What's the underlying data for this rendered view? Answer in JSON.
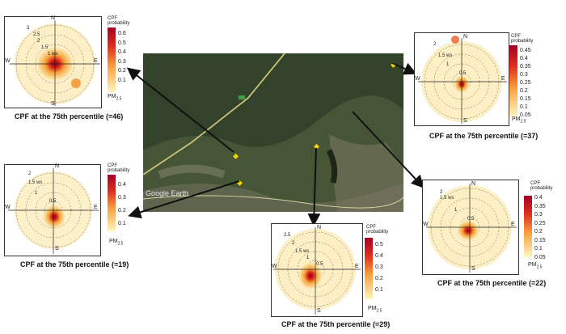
{
  "map": {
    "label": "Google Earth"
  },
  "colorbar": {
    "title_line1": "CPF",
    "title_line2": "probability",
    "pm_label": "PM",
    "pm_sub": "2.5"
  },
  "directions": {
    "n": "N",
    "s": "S",
    "e": "E",
    "w": "W"
  },
  "colors": {
    "map_dark": "#2f3d28",
    "road": "#c9c07a",
    "plume_core": "#b3001b",
    "plume_mid": "#f4a020",
    "plume_low": "#fbe7a8"
  },
  "plots": [
    {
      "id": "tl",
      "caption": "CPF at the 75th percentile (=46)",
      "ticks": [
        "0.6",
        "0.5",
        "0.4",
        "0.3",
        "0.2",
        "0.1"
      ],
      "rings": [
        "3",
        "2.5",
        "2",
        "1.5",
        "1 ws"
      ]
    },
    {
      "id": "tr",
      "caption": "CPF at the 75th percentile (=37)",
      "ticks": [
        "0.45",
        "0.4",
        "0.35",
        "0.3",
        "0.25",
        "0.2",
        "0.15",
        "0.1",
        "0.05"
      ],
      "rings": [
        "2",
        "1.5 ws",
        "1",
        "0.5"
      ]
    },
    {
      "id": "ml",
      "caption": "CPF at the 75th percentile (=19)",
      "ticks": [
        "0.4",
        "0.3",
        "0.2",
        "0.1"
      ],
      "rings": [
        "2",
        "1.5 ws",
        "1",
        "0.5"
      ]
    },
    {
      "id": "bc",
      "caption": "CPF at the 75th percentile (=29)",
      "ticks": [
        "0.5",
        "0.4",
        "0.3",
        "0.2",
        "0.1"
      ],
      "rings": [
        "2.5",
        "2",
        "1.5 ws",
        "1",
        "0.5"
      ]
    },
    {
      "id": "br",
      "caption": "CPF at the 75th percentile (=22)",
      "ticks": [
        "0.4",
        "0.35",
        "0.3",
        "0.25",
        "0.2",
        "0.15",
        "0.1",
        "0.05"
      ],
      "rings": [
        "2",
        "1.5 ws",
        "1",
        "0.5"
      ]
    }
  ]
}
